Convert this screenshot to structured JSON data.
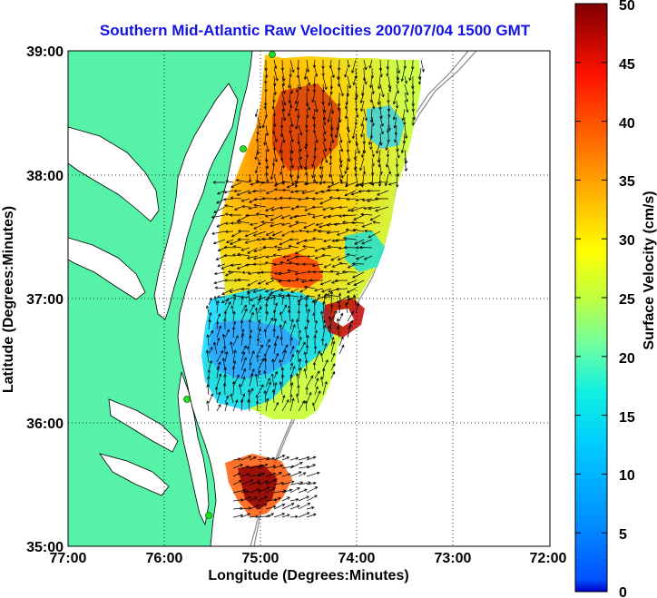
{
  "title": "Southern Mid-Atlantic Raw Velocities 2007/07/04 1500 GMT",
  "map": {
    "xlabel": "Longitude (Degrees:Minutes)",
    "ylabel": "Latitude (Degrees:Minutes)",
    "x_ticks": [
      "77:00",
      "76:00",
      "75:00",
      "74:00",
      "73:00",
      "72:00"
    ],
    "y_ticks": [
      "39:00",
      "38:00",
      "37:00",
      "36:00",
      "35:00"
    ],
    "grid": "dotted",
    "land_color": "#55f2a8",
    "coastline_color": "#000000",
    "station_color": "#22dd22"
  },
  "colorbar": {
    "label": "Surface Velocity (cm/s)",
    "ticks": [
      "0",
      "5",
      "10",
      "15",
      "20",
      "25",
      "30",
      "35",
      "40",
      "45",
      "50"
    ],
    "min": 0,
    "max": 50,
    "colormap": "jet"
  }
}
